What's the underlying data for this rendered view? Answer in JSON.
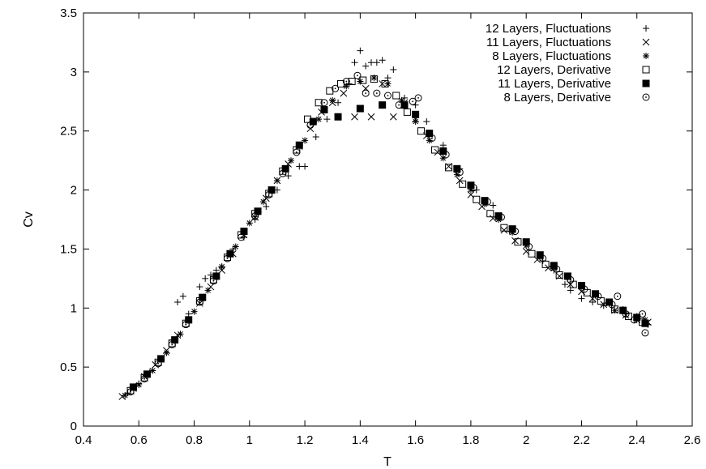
{
  "chart_data": {
    "type": "scatter",
    "title": "",
    "xlabel": "T",
    "ylabel": "Cv",
    "xlim": [
      0.4,
      2.6
    ],
    "ylim": [
      0,
      3.5
    ],
    "x_ticks": [
      "0.4",
      "0.6",
      "0.8",
      "1",
      "1.2",
      "1.4",
      "1.6",
      "1.8",
      "2",
      "2.2",
      "2.4",
      "2.6"
    ],
    "y_ticks": [
      "0",
      "0.5",
      "1",
      "1.5",
      "2",
      "2.5",
      "3",
      "3.5"
    ],
    "grid": false,
    "legend_position": "top-right",
    "series": [
      {
        "name": "12 Layers, Fluctuations",
        "marker": "plus",
        "points": [
          [
            0.56,
            0.28
          ],
          [
            0.6,
            0.36
          ],
          [
            0.64,
            0.46
          ],
          [
            0.68,
            0.57
          ],
          [
            0.72,
            0.73
          ],
          [
            0.74,
            1.05
          ],
          [
            0.76,
            1.1
          ],
          [
            0.78,
            0.95
          ],
          [
            0.82,
            1.18
          ],
          [
            0.84,
            1.25
          ],
          [
            0.86,
            1.28
          ],
          [
            0.88,
            1.32
          ],
          [
            0.9,
            1.35
          ],
          [
            0.94,
            1.5
          ],
          [
            0.98,
            1.6
          ],
          [
            1.02,
            1.75
          ],
          [
            1.06,
            1.86
          ],
          [
            1.1,
            2.0
          ],
          [
            1.14,
            2.12
          ],
          [
            1.18,
            2.2
          ],
          [
            1.2,
            2.2
          ],
          [
            1.24,
            2.45
          ],
          [
            1.28,
            2.6
          ],
          [
            1.32,
            2.74
          ],
          [
            1.36,
            2.9
          ],
          [
            1.38,
            3.08
          ],
          [
            1.4,
            3.18
          ],
          [
            1.42,
            3.05
          ],
          [
            1.44,
            3.08
          ],
          [
            1.46,
            3.08
          ],
          [
            1.48,
            3.1
          ],
          [
            1.5,
            2.95
          ],
          [
            1.52,
            3.02
          ],
          [
            1.56,
            2.78
          ],
          [
            1.6,
            2.72
          ],
          [
            1.64,
            2.58
          ],
          [
            1.7,
            2.38
          ],
          [
            1.76,
            2.18
          ],
          [
            1.82,
            2.0
          ],
          [
            1.88,
            1.87
          ],
          [
            1.94,
            1.65
          ],
          [
            2.0,
            1.55
          ],
          [
            2.06,
            1.4
          ],
          [
            2.1,
            1.32
          ],
          [
            2.14,
            1.2
          ],
          [
            2.16,
            1.15
          ],
          [
            2.2,
            1.08
          ],
          [
            2.24,
            1.05
          ],
          [
            2.28,
            1.02
          ],
          [
            2.32,
            0.98
          ],
          [
            2.36,
            0.95
          ],
          [
            2.4,
            0.9
          ],
          [
            2.44,
            0.86
          ]
        ]
      },
      {
        "name": "11 Layers, Fluctuations",
        "marker": "cross",
        "points": [
          [
            0.54,
            0.25
          ],
          [
            0.58,
            0.32
          ],
          [
            0.62,
            0.42
          ],
          [
            0.66,
            0.52
          ],
          [
            0.7,
            0.64
          ],
          [
            0.74,
            0.77
          ],
          [
            0.78,
            0.9
          ],
          [
            0.82,
            1.04
          ],
          [
            0.86,
            1.18
          ],
          [
            0.9,
            1.32
          ],
          [
            0.94,
            1.46
          ],
          [
            0.98,
            1.62
          ],
          [
            1.02,
            1.77
          ],
          [
            1.06,
            1.93
          ],
          [
            1.1,
            2.08
          ],
          [
            1.14,
            2.22
          ],
          [
            1.18,
            2.37
          ],
          [
            1.22,
            2.52
          ],
          [
            1.26,
            2.66
          ],
          [
            1.3,
            2.74
          ],
          [
            1.34,
            2.82
          ],
          [
            1.38,
            2.62
          ],
          [
            1.42,
            2.86
          ],
          [
            1.44,
            2.62
          ],
          [
            1.48,
            2.9
          ],
          [
            1.52,
            2.62
          ],
          [
            1.56,
            2.74
          ],
          [
            1.6,
            2.6
          ],
          [
            1.64,
            2.46
          ],
          [
            1.68,
            2.32
          ],
          [
            1.72,
            2.2
          ],
          [
            1.76,
            2.08
          ],
          [
            1.8,
            1.96
          ],
          [
            1.84,
            1.86
          ],
          [
            1.88,
            1.76
          ],
          [
            1.92,
            1.66
          ],
          [
            1.96,
            1.57
          ],
          [
            2.0,
            1.48
          ],
          [
            2.04,
            1.41
          ],
          [
            2.08,
            1.34
          ],
          [
            2.12,
            1.27
          ],
          [
            2.16,
            1.2
          ],
          [
            2.2,
            1.14
          ],
          [
            2.24,
            1.08
          ],
          [
            2.28,
            1.03
          ],
          [
            2.32,
            0.98
          ],
          [
            2.36,
            0.94
          ],
          [
            2.4,
            0.9
          ],
          [
            2.44,
            0.88
          ]
        ]
      },
      {
        "name": "8 Layers, Fluctuations",
        "marker": "star",
        "points": [
          [
            0.55,
            0.26
          ],
          [
            0.6,
            0.35
          ],
          [
            0.65,
            0.47
          ],
          [
            0.7,
            0.62
          ],
          [
            0.75,
            0.78
          ],
          [
            0.8,
            0.97
          ],
          [
            0.85,
            1.15
          ],
          [
            0.9,
            1.35
          ],
          [
            0.95,
            1.52
          ],
          [
            1.0,
            1.72
          ],
          [
            1.05,
            1.9
          ],
          [
            1.1,
            2.08
          ],
          [
            1.15,
            2.25
          ],
          [
            1.2,
            2.42
          ],
          [
            1.25,
            2.6
          ],
          [
            1.3,
            2.76
          ],
          [
            1.35,
            2.88
          ],
          [
            1.4,
            2.92
          ],
          [
            1.45,
            2.95
          ],
          [
            1.5,
            2.9
          ],
          [
            1.55,
            2.76
          ],
          [
            1.6,
            2.58
          ],
          [
            1.65,
            2.42
          ],
          [
            1.7,
            2.27
          ],
          [
            1.75,
            2.13
          ],
          [
            1.8,
            2.0
          ],
          [
            1.85,
            1.88
          ],
          [
            1.9,
            1.75
          ],
          [
            1.95,
            1.64
          ],
          [
            2.0,
            1.53
          ],
          [
            2.05,
            1.43
          ],
          [
            2.1,
            1.34
          ],
          [
            2.15,
            1.26
          ],
          [
            2.2,
            1.19
          ],
          [
            2.25,
            1.12
          ],
          [
            2.3,
            1.05
          ],
          [
            2.35,
            0.99
          ],
          [
            2.4,
            0.93
          ],
          [
            2.43,
            0.9
          ]
        ]
      },
      {
        "name": "12 Layers, Derivative",
        "marker": "square-open",
        "points": [
          [
            0.57,
            0.3
          ],
          [
            0.62,
            0.41
          ],
          [
            0.67,
            0.54
          ],
          [
            0.72,
            0.7
          ],
          [
            0.77,
            0.87
          ],
          [
            0.82,
            1.06
          ],
          [
            0.87,
            1.24
          ],
          [
            0.92,
            1.43
          ],
          [
            0.97,
            1.62
          ],
          [
            1.02,
            1.8
          ],
          [
            1.07,
            1.97
          ],
          [
            1.12,
            2.16
          ],
          [
            1.17,
            2.34
          ],
          [
            1.21,
            2.6
          ],
          [
            1.25,
            2.74
          ],
          [
            1.29,
            2.84
          ],
          [
            1.33,
            2.9
          ],
          [
            1.37,
            2.92
          ],
          [
            1.41,
            2.93
          ],
          [
            1.45,
            2.94
          ],
          [
            1.49,
            2.9
          ],
          [
            1.53,
            2.8
          ],
          [
            1.57,
            2.66
          ],
          [
            1.62,
            2.5
          ],
          [
            1.67,
            2.34
          ],
          [
            1.72,
            2.19
          ],
          [
            1.77,
            2.05
          ],
          [
            1.82,
            1.92
          ],
          [
            1.87,
            1.8
          ],
          [
            1.92,
            1.68
          ],
          [
            1.97,
            1.56
          ],
          [
            2.02,
            1.46
          ],
          [
            2.07,
            1.37
          ],
          [
            2.12,
            1.28
          ],
          [
            2.17,
            1.2
          ],
          [
            2.22,
            1.13
          ],
          [
            2.27,
            1.06
          ],
          [
            2.32,
            0.99
          ],
          [
            2.37,
            0.93
          ],
          [
            2.42,
            0.88
          ]
        ]
      },
      {
        "name": "11 Layers, Derivative",
        "marker": "square-filled",
        "points": [
          [
            0.58,
            0.33
          ],
          [
            0.63,
            0.44
          ],
          [
            0.68,
            0.57
          ],
          [
            0.73,
            0.73
          ],
          [
            0.78,
            0.9
          ],
          [
            0.83,
            1.09
          ],
          [
            0.88,
            1.27
          ],
          [
            0.93,
            1.46
          ],
          [
            0.98,
            1.65
          ],
          [
            1.03,
            1.82
          ],
          [
            1.08,
            2.0
          ],
          [
            1.13,
            2.18
          ],
          [
            1.18,
            2.38
          ],
          [
            1.23,
            2.58
          ],
          [
            1.27,
            2.68
          ],
          [
            1.32,
            2.62
          ],
          [
            1.4,
            2.69
          ],
          [
            1.48,
            2.72
          ],
          [
            1.56,
            2.72
          ],
          [
            1.6,
            2.64
          ],
          [
            1.65,
            2.48
          ],
          [
            1.7,
            2.33
          ],
          [
            1.75,
            2.18
          ],
          [
            1.8,
            2.04
          ],
          [
            1.85,
            1.91
          ],
          [
            1.9,
            1.78
          ],
          [
            1.95,
            1.67
          ],
          [
            2.0,
            1.56
          ],
          [
            2.05,
            1.45
          ],
          [
            2.1,
            1.36
          ],
          [
            2.15,
            1.27
          ],
          [
            2.2,
            1.19
          ],
          [
            2.25,
            1.12
          ],
          [
            2.3,
            1.05
          ],
          [
            2.35,
            0.98
          ],
          [
            2.4,
            0.92
          ],
          [
            2.43,
            0.87
          ]
        ]
      },
      {
        "name": "8 Layers, Derivative",
        "marker": "circle-open",
        "points": [
          [
            0.57,
            0.29
          ],
          [
            0.62,
            0.4
          ],
          [
            0.67,
            0.53
          ],
          [
            0.72,
            0.69
          ],
          [
            0.77,
            0.86
          ],
          [
            0.82,
            1.05
          ],
          [
            0.87,
            1.23
          ],
          [
            0.92,
            1.42
          ],
          [
            0.97,
            1.6
          ],
          [
            1.02,
            1.78
          ],
          [
            1.07,
            1.96
          ],
          [
            1.12,
            2.14
          ],
          [
            1.17,
            2.32
          ],
          [
            1.22,
            2.55
          ],
          [
            1.27,
            2.74
          ],
          [
            1.31,
            2.86
          ],
          [
            1.35,
            2.92
          ],
          [
            1.39,
            2.97
          ],
          [
            1.42,
            2.82
          ],
          [
            1.46,
            2.82
          ],
          [
            1.5,
            2.8
          ],
          [
            1.54,
            2.72
          ],
          [
            1.59,
            2.75
          ],
          [
            1.61,
            2.78
          ],
          [
            1.66,
            2.44
          ],
          [
            1.71,
            2.3
          ],
          [
            1.76,
            2.15
          ],
          [
            1.81,
            2.02
          ],
          [
            1.86,
            1.9
          ],
          [
            1.91,
            1.77
          ],
          [
            1.96,
            1.65
          ],
          [
            2.01,
            1.52
          ],
          [
            2.06,
            1.42
          ],
          [
            2.11,
            1.33
          ],
          [
            2.16,
            1.24
          ],
          [
            2.21,
            1.16
          ],
          [
            2.26,
            1.1
          ],
          [
            2.31,
            1.03
          ],
          [
            2.33,
            1.1
          ],
          [
            2.36,
            0.95
          ],
          [
            2.39,
            0.9
          ],
          [
            2.42,
            0.95
          ],
          [
            2.43,
            0.79
          ]
        ]
      }
    ]
  }
}
